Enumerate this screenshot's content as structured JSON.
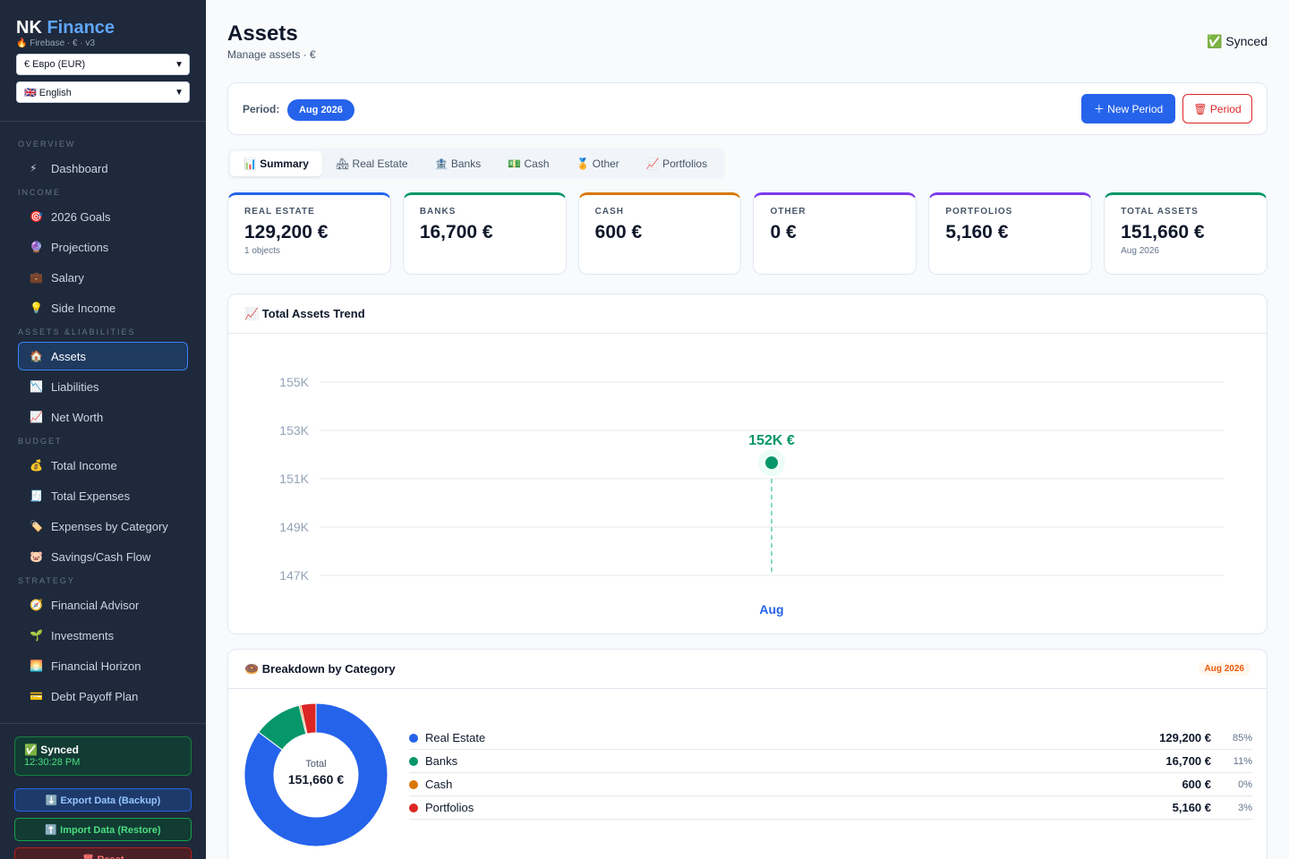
{
  "sidebar": {
    "brand_nk": "NK",
    "brand_finance": "Finance",
    "brand_sub": "🔥 Firebase · € · v3",
    "currency_select": "€ Евро (EUR)",
    "language_select": "🇬🇧 English",
    "sections": {
      "overview": "OVERVIEW",
      "income": "INCOME",
      "assets_liabilities": "ASSETS &LIABILITIES",
      "budget": "BUDGET",
      "strategy": "STRATEGY"
    },
    "items": {
      "dashboard": {
        "icon": "⚡",
        "label": "Dashboard"
      },
      "goals": {
        "icon": "🎯",
        "label": "2026 Goals"
      },
      "projections": {
        "icon": "🔮",
        "label": "Projections"
      },
      "salary": {
        "icon": "💼",
        "label": "Salary"
      },
      "side_income": {
        "icon": "💡",
        "label": "Side Income"
      },
      "assets": {
        "icon": "🏠",
        "label": "Assets"
      },
      "liabilities": {
        "icon": "📉",
        "label": "Liabilities"
      },
      "net_worth": {
        "icon": "📈",
        "label": "Net Worth"
      },
      "total_income": {
        "icon": "💰",
        "label": "Total Income"
      },
      "total_expenses": {
        "icon": "🧾",
        "label": "Total Expenses"
      },
      "expenses_by_category": {
        "icon": "🏷️",
        "label": "Expenses by Category"
      },
      "savings": {
        "icon": "🐷",
        "label": "Savings/Cash Flow"
      },
      "advisor": {
        "icon": "🧭",
        "label": "Financial Advisor"
      },
      "investments": {
        "icon": "🌱",
        "label": "Investments"
      },
      "horizon": {
        "icon": "🌅",
        "label": "Financial Horizon"
      },
      "debt": {
        "icon": "💳",
        "label": "Debt Payoff Plan"
      }
    },
    "synced_title": "✅ Synced",
    "synced_time": "12:30:28 PM",
    "export_button": "⬇️ Export Data (Backup)",
    "import_button": "⬆️ Import Data (Restore)",
    "reset_button": "🗑 Reset"
  },
  "header": {
    "title": "Assets",
    "subtitle": "Manage assets · €",
    "sync_status": "✅ Synced"
  },
  "period": {
    "label": "Period:",
    "current": "Aug 2026",
    "new_button": "＋ New Period",
    "delete_button": "🗑 Period"
  },
  "tabs": [
    {
      "label": "📊 Summary"
    },
    {
      "label": "🏘 Real Estate"
    },
    {
      "label": "🏦 Banks"
    },
    {
      "label": "💵 Cash"
    },
    {
      "label": "🏅 Other"
    },
    {
      "label": "📈 Portfolios"
    }
  ],
  "cards": [
    {
      "label": "REAL ESTATE",
      "value": "129,200 €",
      "sub": "1 objects",
      "color": "#2563eb"
    },
    {
      "label": "BANKS",
      "value": "16,700 €",
      "sub": "",
      "color": "#059669"
    },
    {
      "label": "CASH",
      "value": "600 €",
      "sub": "",
      "color": "#d97706"
    },
    {
      "label": "OTHER",
      "value": "0 €",
      "sub": "",
      "color": "#7c3aed"
    },
    {
      "label": "PORTFOLIOS",
      "value": "5,160 €",
      "sub": "",
      "color": "#7c3aed"
    },
    {
      "label": "TOTAL ASSETS",
      "value": "151,660 €",
      "sub": "Aug 2026",
      "color": "#059669"
    }
  ],
  "trend": {
    "title": "📈 Total Assets Trend",
    "chart_data": {
      "type": "line",
      "x": [
        "Aug"
      ],
      "values": [
        151660
      ],
      "point_label": "152K €",
      "yticks": [
        "155K",
        "153K",
        "151K",
        "149K",
        "147K"
      ],
      "ylim": [
        147000,
        155000
      ],
      "color": "#059669"
    }
  },
  "breakdown": {
    "title": "🍩 Breakdown by Category",
    "badge": "Aug 2026",
    "donut_label": "Total",
    "donut_total": "151,660 €",
    "chart_data": {
      "type": "pie",
      "categories": [
        "Real Estate",
        "Banks",
        "Cash",
        "Portfolios"
      ],
      "values": [
        129200,
        16700,
        600,
        5160
      ],
      "colors": [
        "#2563eb",
        "#059669",
        "#d97706",
        "#dc2626"
      ]
    },
    "rows": [
      {
        "name": "Real Estate",
        "value": "129,200 €",
        "pct": "85%",
        "color": "#2563eb"
      },
      {
        "name": "Banks",
        "value": "16,700 €",
        "pct": "11%",
        "color": "#059669"
      },
      {
        "name": "Cash",
        "value": "600 €",
        "pct": "0%",
        "color": "#d97706"
      },
      {
        "name": "Portfolios",
        "value": "5,160 €",
        "pct": "3%",
        "color": "#dc2626"
      }
    ]
  }
}
